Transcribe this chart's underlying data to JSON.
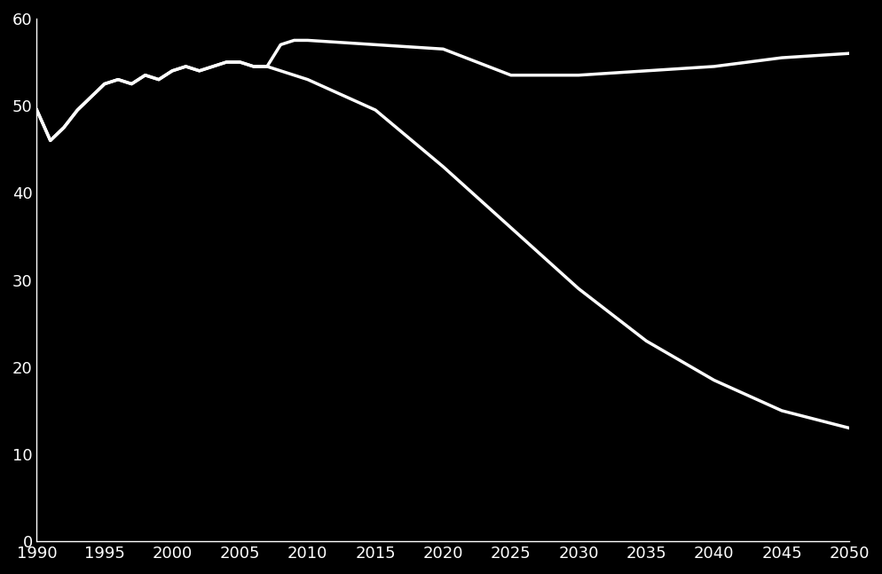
{
  "background_color": "#000000",
  "line_color": "#ffffff",
  "line_width": 2.5,
  "xlim": [
    1990,
    2050
  ],
  "ylim": [
    0,
    60
  ],
  "xticks": [
    1990,
    1995,
    2000,
    2005,
    2010,
    2015,
    2020,
    2025,
    2030,
    2035,
    2040,
    2045,
    2050
  ],
  "yticks": [
    0,
    10,
    20,
    30,
    40,
    50,
    60
  ],
  "tick_color": "#ffffff",
  "tick_fontsize": 13,
  "shared_x": [
    1990,
    1991,
    1992,
    1993,
    1994,
    1995,
    1996,
    1997,
    1998,
    1999,
    2000,
    2001,
    2002,
    2003,
    2004,
    2005,
    2006,
    2007
  ],
  "shared_y": [
    49.5,
    46.0,
    47.5,
    49.5,
    51.0,
    52.5,
    53.0,
    52.5,
    53.5,
    53.0,
    54.0,
    54.5,
    54.0,
    54.5,
    55.0,
    55.0,
    54.5,
    54.5
  ],
  "line1_x": [
    2007,
    2008,
    2009,
    2010,
    2015,
    2020,
    2025,
    2030,
    2035,
    2040,
    2045,
    2050
  ],
  "line1_y": [
    54.5,
    57.0,
    57.5,
    57.5,
    57.0,
    56.5,
    53.5,
    53.5,
    54.0,
    54.5,
    55.5,
    56.0
  ],
  "line2_x": [
    2007,
    2010,
    2015,
    2020,
    2025,
    2030,
    2035,
    2040,
    2045,
    2050
  ],
  "line2_y": [
    54.5,
    53.0,
    49.5,
    43.0,
    36.0,
    29.0,
    23.0,
    18.5,
    15.0,
    13.0
  ],
  "spine_color": "#ffffff",
  "figure_facecolor": "#000000",
  "axes_facecolor": "#000000"
}
